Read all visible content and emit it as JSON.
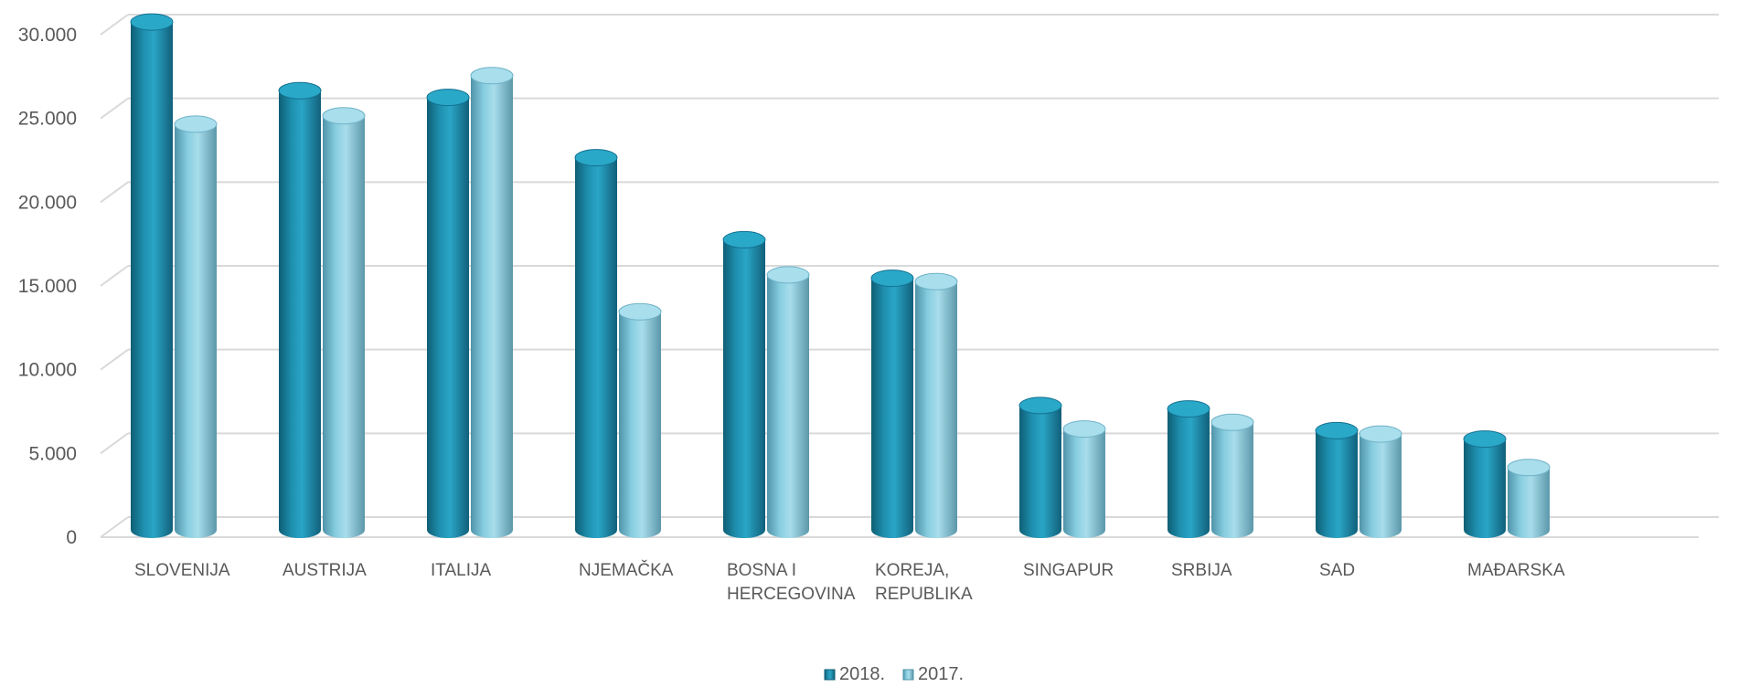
{
  "chart_data": {
    "type": "bar",
    "style": "3d-cylinder",
    "categories": [
      [
        "SLOVENIJA"
      ],
      [
        "AUSTRIJA"
      ],
      [
        "ITALIJA"
      ],
      [
        "NJEMAČKA"
      ],
      [
        "BOSNA I",
        "HERCEGOVINA"
      ],
      [
        "KOREJA,",
        "REPUBLIKA"
      ],
      [
        "SINGAPUR"
      ],
      [
        "SRBIJA"
      ],
      [
        "SAD"
      ],
      [
        "MAĐARSKA"
      ]
    ],
    "series": [
      {
        "name": "2018.",
        "color": "#1E8FAE",
        "values": [
          30100,
          26000,
          25600,
          22000,
          17100,
          14800,
          7200,
          7000,
          5700,
          5200
        ]
      },
      {
        "name": "2017.",
        "color": "#86CDE0",
        "values": [
          24000,
          24500,
          26900,
          12800,
          15000,
          14600,
          5800,
          6200,
          5500,
          3500
        ]
      }
    ],
    "y_ticks": [
      "0",
      "5.000",
      "10.000",
      "15.000",
      "20.000",
      "25.000",
      "30.000"
    ],
    "ylim": [
      0,
      30000
    ],
    "grid": true,
    "legend": "bottom-center"
  }
}
